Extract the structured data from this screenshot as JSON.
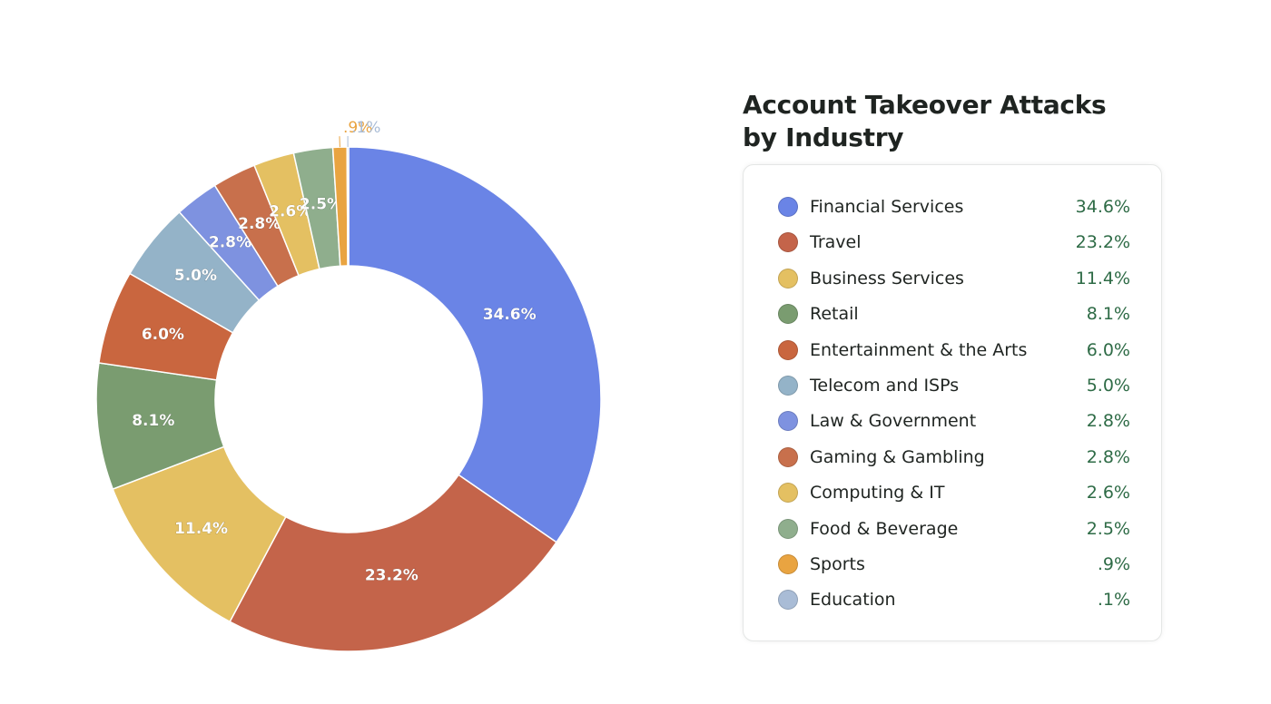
{
  "chart_data": {
    "type": "pie",
    "title": "Account Takeover Attacks by Industry",
    "title_lines": [
      "Account Takeover Attacks",
      "by Industry"
    ],
    "categories": [
      "Financial Services",
      "Travel",
      "Business Services",
      "Retail",
      "Entertainment & the Arts",
      "Telecom and ISPs",
      "Law & Government",
      "Gaming & Gambling",
      "Computing & IT",
      "Food & Beverage",
      "Sports",
      "Education"
    ],
    "values": [
      34.6,
      23.2,
      11.4,
      8.1,
      6.0,
      5.0,
      2.8,
      2.8,
      2.6,
      2.5,
      0.9,
      0.1
    ],
    "value_labels": [
      "34.6%",
      "23.2%",
      "11.4%",
      "8.1%",
      "6.0%",
      "5.0%",
      "2.8%",
      "2.8%",
      "2.6%",
      "2.5%",
      ".9%",
      ".1%"
    ],
    "colors": [
      "#6a84e6",
      "#c4644a",
      "#e4c062",
      "#7a9c70",
      "#c9663f",
      "#94b3c8",
      "#7e92e0",
      "#c8704c",
      "#e4c062",
      "#8fae8d",
      "#e9a441",
      "#a9bcd6"
    ],
    "donut": true,
    "legend": "right"
  }
}
